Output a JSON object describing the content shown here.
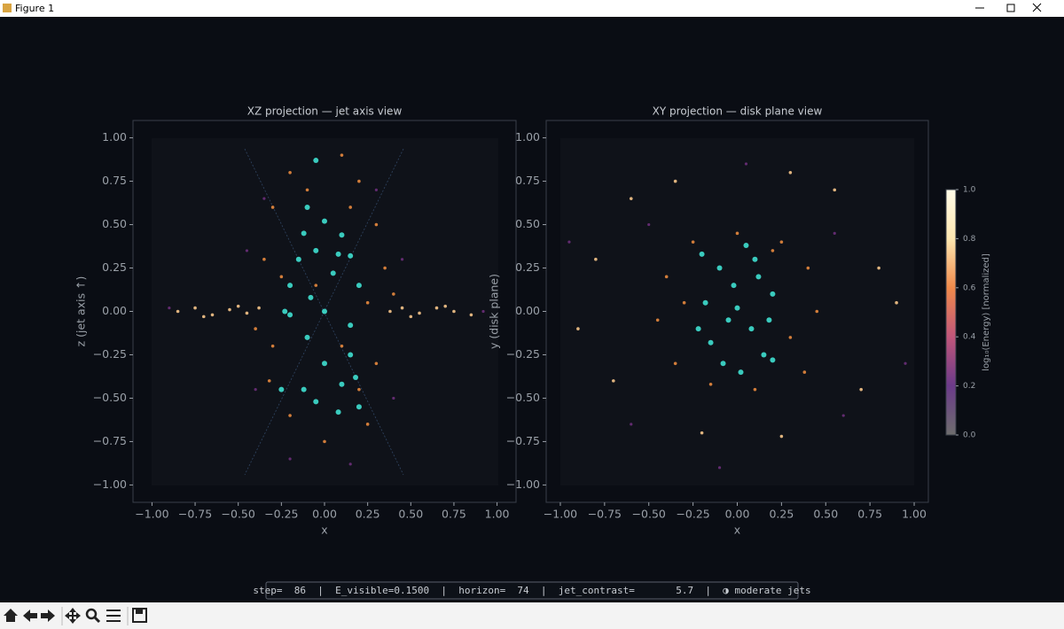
{
  "window": {
    "title": "Figure 1"
  },
  "status": "step=  86  |  E_visible=0.1500  |  horizon=  74  |  jet_contrast=       5.7  |  ◑ moderate jets",
  "chart_data": [
    {
      "type": "scatter",
      "title": "XZ projection — jet axis view",
      "x_label": "x",
      "y_label": "z  (jet axis ↑)",
      "xlim": [
        -1.11,
        1.11
      ],
      "ylim": [
        -1.1,
        1.1
      ],
      "xticks": [
        {
          "value": -1,
          "label": "−1.00"
        },
        {
          "value": -0.75,
          "label": "−0.75"
        },
        {
          "value": -0.5,
          "label": "−0.50"
        },
        {
          "value": -0.25,
          "label": "−0.25"
        },
        {
          "value": 0,
          "label": "0.00"
        },
        0.25,
        {
          "value": 0.5,
          "label": "0.50"
        },
        0.75,
        {
          "value": 1,
          "label": "1.00"
        }
      ],
      "yticks": [
        {
          "value": -1,
          "label": "−1.00"
        },
        {
          "value": -0.75,
          "label": "−0.75"
        },
        {
          "value": -0.5,
          "label": "−0.50"
        },
        {
          "value": -0.25,
          "label": "−0.25"
        },
        {
          "value": 0,
          "label": "0.00"
        },
        0.25,
        {
          "value": 0.5,
          "label": "0.50"
        },
        0.75,
        {
          "value": 1,
          "label": "1.00"
        }
      ],
      "series": [
        {
          "color": "#6b2f7a",
          "size": 1.6,
          "x": [
            -0.45,
            0.45,
            -0.4,
            0.4,
            -0.9,
            0.92,
            -0.35,
            0.3,
            -0.2,
            0.15
          ],
          "values": [
            0.35,
            0.3,
            -0.45,
            -0.5,
            0.02,
            0,
            0.65,
            0.7,
            -0.85,
            -0.88
          ]
        },
        {
          "color": "#f6c58a",
          "size": 1.8,
          "x": [
            -0.85,
            -0.75,
            -0.65,
            -0.55,
            -0.45,
            -0.38,
            0.38,
            0.45,
            0.55,
            0.65,
            0.75,
            0.85,
            -0.7,
            0.7,
            -0.5,
            0.5
          ],
          "values": [
            0,
            0.02,
            -0.02,
            0.01,
            -0.01,
            0.02,
            0,
            0.02,
            -0.01,
            0.02,
            0,
            -0.02,
            -0.03,
            0.03,
            0.03,
            -0.03
          ]
        },
        {
          "color": "#e8893e",
          "size": 1.8,
          "x": [
            -0.3,
            0.2,
            -0.2,
            0.3,
            -0.35,
            0.35,
            -0.25,
            0.25,
            -0.3,
            0.3,
            -0.2,
            0.25,
            0,
            -0.1,
            0.1,
            0.4,
            -0.4,
            0.1,
            -0.05,
            0.2,
            -0.32,
            0.15
          ],
          "values": [
            0.6,
            0.75,
            0.8,
            0.5,
            0.3,
            0.25,
            0.2,
            0.05,
            -0.2,
            -0.3,
            -0.6,
            -0.65,
            -0.75,
            0.7,
            0.9,
            0.1,
            -0.1,
            -0.2,
            0.15,
            -0.45,
            -0.4,
            0.6
          ]
        },
        {
          "color": "#3fe0d0",
          "size": 3,
          "x": [
            -0.05,
            -0.1,
            0,
            -0.12,
            0.1,
            -0.05,
            0.08,
            -0.15,
            0.15,
            0.05,
            -0.2,
            0.2,
            -0.08,
            -0.2,
            -0.23,
            0,
            0.15,
            -0.1,
            0.15,
            0,
            -0.12,
            0.1,
            -0.05,
            0.2,
            0.08,
            -0.25,
            0.18
          ],
          "values": [
            0.87,
            0.6,
            0.52,
            0.45,
            0.44,
            0.35,
            0.33,
            0.3,
            0.32,
            0.22,
            0.15,
            0.15,
            0.08,
            -0.02,
            0,
            0,
            -0.08,
            -0.15,
            -0.25,
            -0.3,
            -0.45,
            -0.42,
            -0.52,
            -0.55,
            -0.58,
            -0.45,
            -0.38
          ]
        }
      ]
    },
    {
      "type": "scatter",
      "title": "XY projection — disk plane view",
      "x_label": "x",
      "y_label": "y  (disk plane)",
      "xlim": [
        -1.08,
        1.08
      ],
      "ylim": [
        -1.1,
        1.1
      ],
      "xticks": [
        {
          "value": -1,
          "label": "−1.00"
        },
        {
          "value": -0.75,
          "label": "−0.75"
        },
        {
          "value": -0.5,
          "label": "−0.50"
        },
        {
          "value": -0.25,
          "label": "−0.25"
        },
        {
          "value": 0,
          "label": "0.00"
        },
        0.25,
        {
          "value": 0.5,
          "label": "0.50"
        },
        0.75,
        {
          "value": 1,
          "label": "1.00"
        }
      ],
      "yticks": [
        {
          "value": -1,
          "label": "−1.00"
        },
        {
          "value": -0.75,
          "label": "−0.75"
        },
        {
          "value": -0.5,
          "label": "−0.50"
        },
        {
          "value": -0.25,
          "label": "−0.25"
        },
        {
          "value": 0,
          "label": "0.00"
        },
        0.25,
        {
          "value": 0.5,
          "label": "0.50"
        },
        0.75,
        {
          "value": 1,
          "label": "1.00"
        }
      ],
      "series": [
        {
          "color": "#6b2f7a",
          "size": 1.6,
          "x": [
            -0.6,
            0.6,
            -0.5,
            0.55,
            -0.1,
            0.05,
            -0.95,
            0.95
          ],
          "values": [
            -0.65,
            -0.6,
            0.5,
            0.45,
            -0.9,
            0.85,
            0.4,
            -0.3
          ]
        },
        {
          "color": "#f6c58a",
          "size": 1.8,
          "x": [
            -0.6,
            0.55,
            -0.8,
            0.8,
            -0.7,
            0.7,
            -0.35,
            0.3,
            -0.2,
            0.25,
            -0.9,
            0.9
          ],
          "values": [
            0.65,
            0.7,
            0.3,
            0.25,
            -0.4,
            -0.45,
            0.75,
            0.8,
            -0.7,
            -0.72,
            -0.1,
            0.05
          ]
        },
        {
          "color": "#e8893e",
          "size": 1.8,
          "x": [
            -0.4,
            0.4,
            -0.35,
            0.38,
            0,
            0.1,
            -0.25,
            0.25,
            -0.45,
            0.45,
            -0.15,
            0.3,
            -0.3,
            0.2
          ],
          "values": [
            0.2,
            0.25,
            -0.3,
            -0.35,
            0.45,
            -0.45,
            0.4,
            0.4,
            -0.05,
            0,
            -0.42,
            -0.15,
            0.05,
            0.35
          ]
        },
        {
          "color": "#3fe0d0",
          "size": 3,
          "x": [
            -0.2,
            0.05,
            -0.1,
            0.12,
            0.2,
            -0.18,
            0,
            -0.05,
            0.08,
            -0.15,
            0.15,
            -0.08,
            0.02,
            0.2,
            -0.22,
            0.1,
            -0.02,
            0.18
          ],
          "values": [
            0.33,
            0.38,
            0.25,
            0.2,
            0.1,
            0.05,
            0.02,
            -0.05,
            -0.1,
            -0.18,
            -0.25,
            -0.3,
            -0.35,
            -0.28,
            -0.1,
            0.3,
            0.15,
            -0.05
          ]
        }
      ],
      "colorbar": {
        "label": "log₁₀(Energy)  [normalized]",
        "ylim": [
          0,
          1
        ],
        "yticks": [
          {
            "value": 0,
            "label": "0.0"
          },
          0.2,
          0.4,
          0.6,
          0.8,
          {
            "value": 1,
            "label": "1.0"
          }
        ],
        "colors": [
          "#6e6e6e",
          "#6b3a8a",
          "#c0567a",
          "#f08a4b",
          "#fde7b0",
          "#fffbe8"
        ]
      }
    }
  ]
}
